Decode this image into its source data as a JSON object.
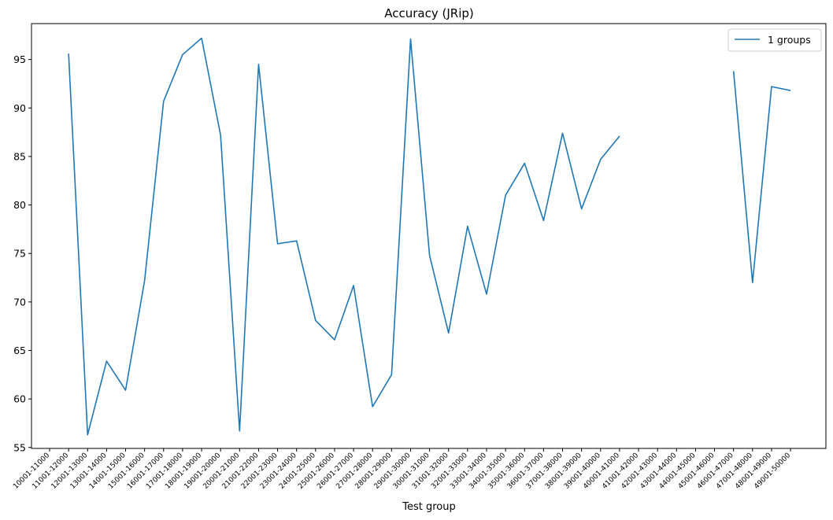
{
  "chart_data": {
    "type": "line",
    "title": "Accuracy (JRip)",
    "xlabel": "Test group",
    "ylabel": "",
    "ylim": [
      54.9,
      98.7
    ],
    "yticks": [
      55,
      60,
      65,
      70,
      75,
      80,
      85,
      90,
      95
    ],
    "grid": false,
    "legend": {
      "position": "top-right",
      "entries": [
        "1 groups"
      ]
    },
    "colors": {
      "line": "#1f77b4"
    },
    "categories": [
      "10001-11000",
      "11001-12000",
      "12001-13000",
      "13001-14000",
      "14001-15000",
      "15001-16000",
      "16001-17000",
      "17001-18000",
      "18001-19000",
      "19001-20000",
      "20001-21000",
      "21001-22000",
      "22001-23000",
      "23001-24000",
      "24001-25000",
      "25001-26000",
      "26001-27000",
      "27001-28000",
      "28001-29000",
      "29001-30000",
      "30001-31000",
      "31001-32000",
      "32001-33000",
      "33001-34000",
      "34001-35000",
      "35001-36000",
      "36001-37000",
      "37001-38000",
      "38001-39000",
      "39001-40000",
      "40001-41000",
      "41001-42000",
      "42001-43000",
      "43001-44000",
      "44001-45000",
      "45001-46000",
      "46001-47000",
      "47001-48000",
      "48001-49000",
      "49001-50000"
    ],
    "series": [
      {
        "name": "1 groups",
        "values": [
          null,
          95.6,
          56.3,
          63.9,
          60.9,
          72.2,
          90.7,
          95.5,
          97.2,
          87.2,
          56.7,
          94.5,
          76.0,
          76.3,
          68.1,
          66.1,
          71.7,
          59.2,
          62.5,
          97.1,
          74.8,
          66.8,
          77.8,
          70.8,
          81.0,
          84.3,
          78.4,
          87.4,
          79.6,
          84.7,
          87.1,
          null,
          null,
          null,
          null,
          null,
          93.8,
          72.0,
          92.2,
          91.8
        ]
      }
    ]
  }
}
